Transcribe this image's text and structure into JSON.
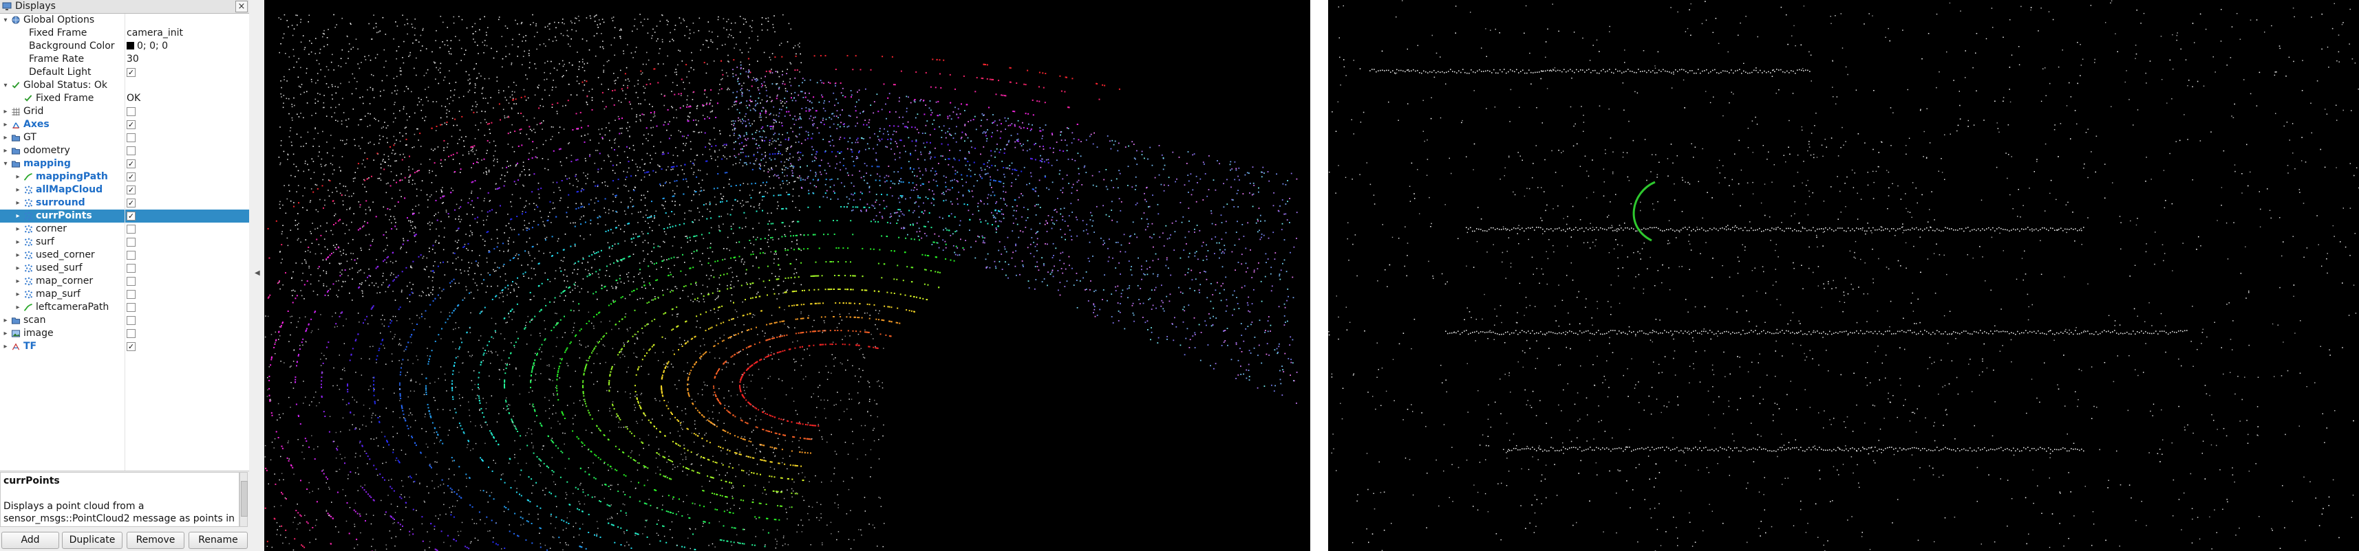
{
  "panel": {
    "title": "Displays",
    "close_glyph": "×",
    "rows": [
      {
        "label": "Global Options",
        "depth": 0,
        "arrow": "open",
        "icon": "globe-icon",
        "value": "",
        "checkbox": null
      },
      {
        "label": "Fixed Frame",
        "depth": 1,
        "arrow": "",
        "icon": "",
        "value": "camera_init",
        "checkbox": null
      },
      {
        "label": "Background Color",
        "depth": 1,
        "arrow": "",
        "icon": "",
        "value": "0; 0; 0",
        "swatch": "#000000",
        "checkbox": null
      },
      {
        "label": "Frame Rate",
        "depth": 1,
        "arrow": "",
        "icon": "",
        "value": "30",
        "checkbox": null
      },
      {
        "label": "Default Light",
        "depth": 1,
        "arrow": "",
        "icon": "",
        "value": "",
        "checkbox": true
      },
      {
        "label": "Global Status: Ok",
        "depth": 0,
        "arrow": "open",
        "icon": "check-icon",
        "value": "",
        "checkbox": null
      },
      {
        "label": "Fixed Frame",
        "depth": 1,
        "arrow": "",
        "icon": "check-icon",
        "value": "OK",
        "checkbox": null
      },
      {
        "label": "Grid",
        "depth": 0,
        "arrow": "closed",
        "icon": "grid-icon",
        "value": "",
        "checkbox": false
      },
      {
        "label": "Axes",
        "depth": 0,
        "arrow": "closed",
        "icon": "axes-icon",
        "value": "",
        "checkbox": true,
        "blue": true
      },
      {
        "label": "GT",
        "depth": 0,
        "arrow": "closed",
        "icon": "folder-icon",
        "value": "",
        "checkbox": false
      },
      {
        "label": "odometry",
        "depth": 0,
        "arrow": "closed",
        "icon": "folder-icon",
        "value": "",
        "checkbox": false
      },
      {
        "label": "mapping",
        "depth": 0,
        "arrow": "open",
        "icon": "folder-icon",
        "value": "",
        "checkbox": true,
        "blue": true
      },
      {
        "label": "mappingPath",
        "depth": 1,
        "arrow": "closed",
        "icon": "path-icon",
        "value": "",
        "checkbox": true,
        "blue": true
      },
      {
        "label": "allMapCloud",
        "depth": 1,
        "arrow": "closed",
        "icon": "pointcloud-icon",
        "value": "",
        "checkbox": true,
        "blue": true
      },
      {
        "label": "surround",
        "depth": 1,
        "arrow": "closed",
        "icon": "pointcloud-icon",
        "value": "",
        "checkbox": true,
        "blue": true
      },
      {
        "label": "currPoints",
        "depth": 1,
        "arrow": "closed",
        "icon": "pointcloud-icon",
        "value": "",
        "checkbox": true,
        "blue": true,
        "selected": true
      },
      {
        "label": "corner",
        "depth": 1,
        "arrow": "closed",
        "icon": "pointcloud-icon",
        "value": "",
        "checkbox": false
      },
      {
        "label": "surf",
        "depth": 1,
        "arrow": "closed",
        "icon": "pointcloud-icon",
        "value": "",
        "checkbox": false
      },
      {
        "label": "used_corner",
        "depth": 1,
        "arrow": "closed",
        "icon": "pointcloud-icon",
        "value": "",
        "checkbox": false
      },
      {
        "label": "used_surf",
        "depth": 1,
        "arrow": "closed",
        "icon": "pointcloud-icon",
        "value": "",
        "checkbox": false
      },
      {
        "label": "map_corner",
        "depth": 1,
        "arrow": "closed",
        "icon": "pointcloud-icon",
        "value": "",
        "checkbox": false
      },
      {
        "label": "map_surf",
        "depth": 1,
        "arrow": "closed",
        "icon": "pointcloud-icon",
        "value": "",
        "checkbox": false
      },
      {
        "label": "leftcameraPath",
        "depth": 1,
        "arrow": "closed",
        "icon": "path-icon",
        "value": "",
        "checkbox": false
      },
      {
        "label": "scan",
        "depth": 0,
        "arrow": "closed",
        "icon": "folder-icon",
        "value": "",
        "checkbox": false
      },
      {
        "label": "image",
        "depth": 0,
        "arrow": "closed",
        "icon": "image-icon",
        "value": "",
        "checkbox": false
      },
      {
        "label": "TF",
        "depth": 0,
        "arrow": "closed",
        "icon": "tf-icon",
        "value": "",
        "checkbox": true,
        "blue": true
      }
    ]
  },
  "description": {
    "title": "currPoints",
    "text": "Displays a point cloud from a sensor_msgs::PointCloud2 message as points in"
  },
  "buttons": {
    "add": "Add",
    "duplicate": "Duplicate",
    "remove": "Remove",
    "rename": "Rename"
  },
  "colors": {
    "selection": "#308cc6",
    "enabled_label": "#1e6ec8",
    "viewport_background": "#000000"
  }
}
